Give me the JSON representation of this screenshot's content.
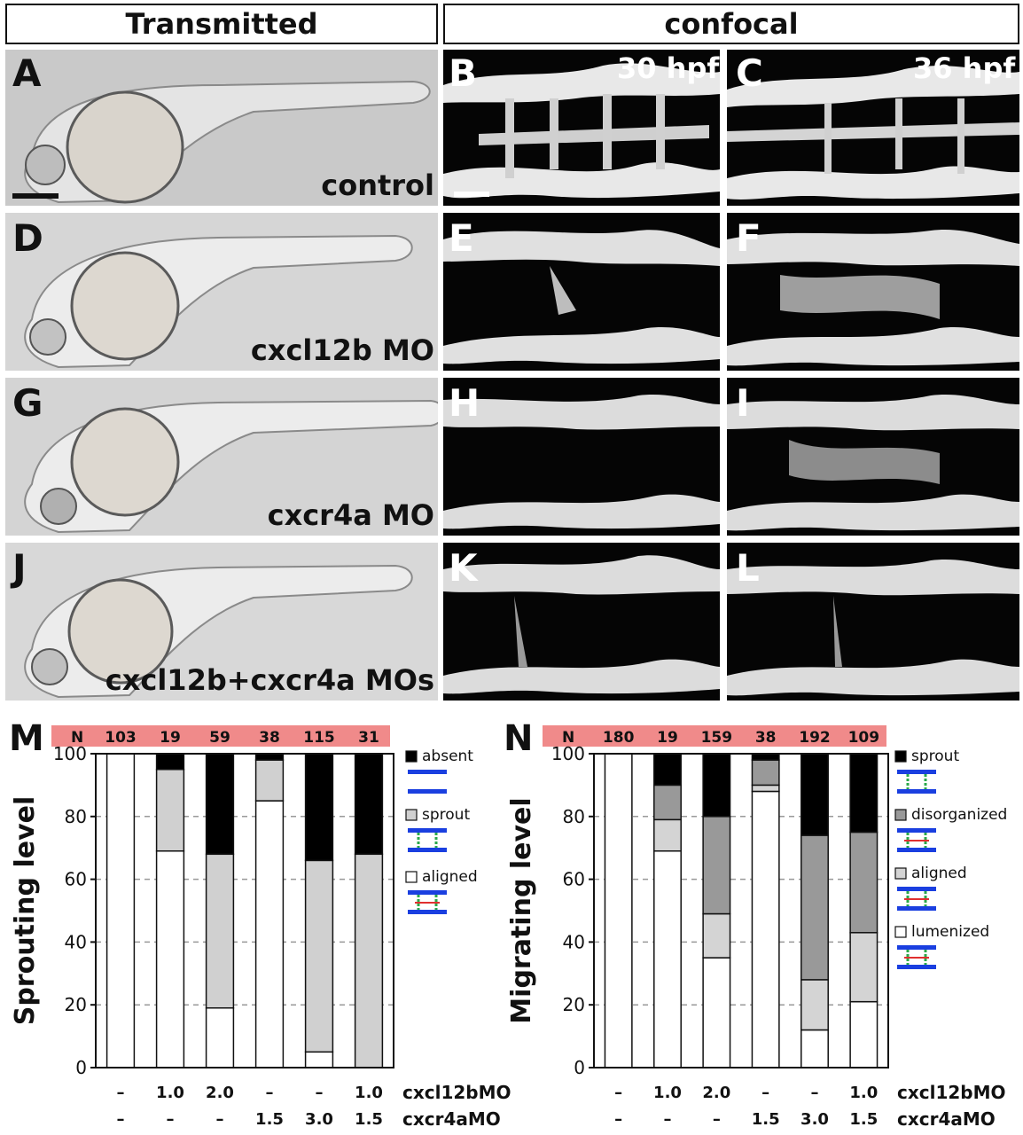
{
  "headers": {
    "transmitted": "Transmitted",
    "confocal": "confocal"
  },
  "panels": {
    "A": "A",
    "B": "B",
    "C": "C",
    "D": "D",
    "E": "E",
    "F": "F",
    "G": "G",
    "H": "H",
    "I": "I",
    "J": "J",
    "K": "K",
    "L": "L"
  },
  "row_labels": [
    "control",
    "cxcl12b MO",
    "cxcr4a MO",
    "cxcl12b+cxcr4a MOs"
  ],
  "time_labels": {
    "t30": "30 hpf",
    "t36": "36 hpf"
  },
  "chart_data": [
    {
      "type": "bar",
      "panel_letter": "M",
      "n_label": "N",
      "n_values": [
        "103",
        "19",
        "59",
        "38",
        "115",
        "31"
      ],
      "ylabel": "Sprouting level",
      "ylim": [
        0,
        100
      ],
      "yticks": [
        "0",
        "20",
        "40",
        "60",
        "80",
        "100"
      ],
      "stacked": true,
      "series": [
        {
          "name": "aligned",
          "color": "#ffffff",
          "values": [
            100,
            69,
            19,
            85,
            5,
            0
          ]
        },
        {
          "name": "sprout",
          "color": "#d0d0d0",
          "values": [
            0,
            26,
            49,
            13,
            61,
            68
          ]
        },
        {
          "name": "absent",
          "color": "#000000",
          "values": [
            0,
            5,
            32,
            2,
            34,
            32
          ]
        }
      ],
      "legend": [
        "absent",
        "sprout",
        "aligned"
      ],
      "conditions": [
        {
          "name": "cxcl12bMO",
          "values": [
            "–",
            "1.0",
            "2.0",
            "–",
            "–",
            "1.0"
          ]
        },
        {
          "name": "cxcr4aMO",
          "values": [
            "–",
            "–",
            "–",
            "1.5",
            "3.0",
            "1.5"
          ]
        }
      ],
      "grid": "dashed"
    },
    {
      "type": "bar",
      "panel_letter": "N",
      "n_label": "N",
      "n_values": [
        "180",
        "19",
        "159",
        "38",
        "192",
        "109"
      ],
      "ylabel": "Migrating level",
      "ylim": [
        0,
        100
      ],
      "yticks": [
        "0",
        "20",
        "40",
        "60",
        "80",
        "100"
      ],
      "stacked": true,
      "series": [
        {
          "name": "lumenized",
          "color": "#ffffff",
          "values": [
            100,
            69,
            35,
            88,
            12,
            21
          ]
        },
        {
          "name": "aligned",
          "color": "#d4d4d4",
          "values": [
            0,
            10,
            14,
            2,
            16,
            22
          ]
        },
        {
          "name": "disorganized",
          "color": "#999999",
          "values": [
            0,
            11,
            31,
            8,
            46,
            32
          ]
        },
        {
          "name": "sprout",
          "color": "#000000",
          "values": [
            0,
            10,
            20,
            2,
            26,
            25
          ]
        }
      ],
      "legend": [
        "sprout",
        "disorganized",
        "aligned",
        "lumenized"
      ],
      "conditions": [
        {
          "name": "cxcl12bMO",
          "values": [
            "–",
            "1.0",
            "2.0",
            "–",
            "–",
            "1.0"
          ]
        },
        {
          "name": "cxcr4aMO",
          "values": [
            "–",
            "–",
            "–",
            "1.5",
            "3.0",
            "1.5"
          ]
        }
      ],
      "grid": "dashed"
    }
  ]
}
